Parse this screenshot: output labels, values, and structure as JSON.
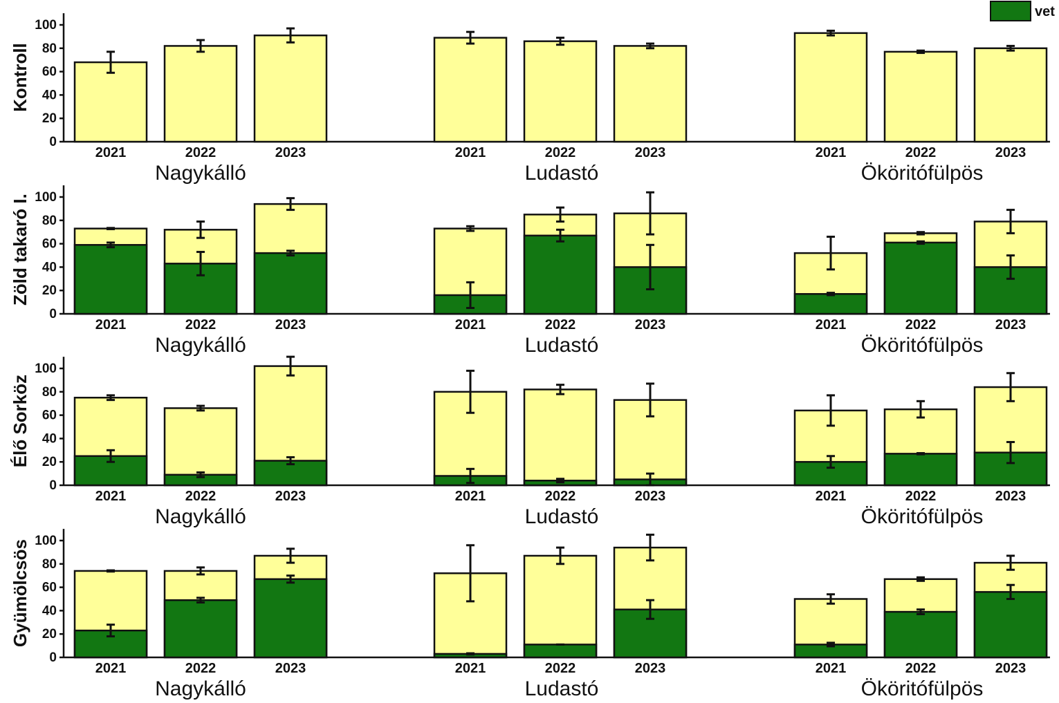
{
  "title": "",
  "legend": {
    "label": "vet",
    "color": "#127712"
  },
  "colors": {
    "green": "#127712",
    "yellow": "#ffff99",
    "outline": "#111111"
  },
  "chart_data": [
    {
      "type": "bar",
      "stacked": true,
      "panel": "Kontroll",
      "ylabel": "Kontroll",
      "yticks": [
        "0",
        "20",
        "40",
        "60",
        "80",
        "100"
      ],
      "ylim": [
        0,
        110
      ],
      "groups": [
        {
          "site": "Nagykálló",
          "categories": [
            "2021",
            "2022",
            "2023"
          ],
          "total": [
            68,
            82,
            91
          ],
          "total_err": [
            9,
            5,
            6
          ],
          "green": [
            0,
            0,
            0
          ],
          "green_err": [
            0,
            0,
            0
          ]
        },
        {
          "site": "Ludastó",
          "categories": [
            "2021",
            "2022",
            "2023"
          ],
          "total": [
            89,
            86,
            82
          ],
          "total_err": [
            5,
            3,
            2
          ],
          "green": [
            0,
            0,
            0
          ],
          "green_err": [
            0,
            0,
            0
          ]
        },
        {
          "site": "Ököritófülpös",
          "categories": [
            "2021",
            "2022",
            "2023"
          ],
          "total": [
            93,
            77,
            80
          ],
          "total_err": [
            2,
            1,
            2
          ],
          "green": [
            0,
            0,
            0
          ],
          "green_err": [
            0,
            0,
            0
          ]
        }
      ]
    },
    {
      "type": "bar",
      "stacked": true,
      "panel": "Zöld takaró I.",
      "ylabel": "Zöld takaró I.",
      "yticks": [
        "0",
        "20",
        "40",
        "60",
        "80",
        "100"
      ],
      "ylim": [
        0,
        110
      ],
      "groups": [
        {
          "site": "Nagykálló",
          "categories": [
            "2021",
            "2022",
            "2023"
          ],
          "total": [
            73,
            72,
            94
          ],
          "total_err": [
            0.5,
            7,
            5
          ],
          "green": [
            59,
            43,
            52
          ],
          "green_err": [
            2,
            10,
            2
          ]
        },
        {
          "site": "Ludastó",
          "categories": [
            "2021",
            "2022",
            "2023"
          ],
          "total": [
            73,
            85,
            86
          ],
          "total_err": [
            2,
            6,
            18
          ],
          "green": [
            16,
            67,
            40
          ],
          "green_err": [
            11,
            5,
            19
          ]
        },
        {
          "site": "Ököritófülpös",
          "categories": [
            "2021",
            "2022",
            "2023"
          ],
          "total": [
            52,
            69,
            79
          ],
          "total_err": [
            14,
            1,
            10
          ],
          "green": [
            17,
            61,
            40
          ],
          "green_err": [
            1,
            1,
            10
          ]
        }
      ]
    },
    {
      "type": "bar",
      "stacked": true,
      "panel": "Élő Sorköz",
      "ylabel": "Élő Sorköz",
      "yticks": [
        "0",
        "20",
        "40",
        "60",
        "80",
        "100"
      ],
      "ylim": [
        0,
        110
      ],
      "groups": [
        {
          "site": "Nagykálló",
          "categories": [
            "2021",
            "2022",
            "2023"
          ],
          "total": [
            75,
            66,
            102
          ],
          "total_err": [
            2,
            2,
            8
          ],
          "green": [
            25,
            9,
            21
          ],
          "green_err": [
            5,
            2,
            3
          ]
        },
        {
          "site": "Ludastó",
          "categories": [
            "2021",
            "2022",
            "2023"
          ],
          "total": [
            80,
            82,
            73
          ],
          "total_err": [
            18,
            4,
            14
          ],
          "green": [
            8,
            4,
            5
          ],
          "green_err": [
            6,
            1.5,
            5
          ]
        },
        {
          "site": "Ököritófülpös",
          "categories": [
            "2021",
            "2022",
            "2023"
          ],
          "total": [
            64,
            65,
            84
          ],
          "total_err": [
            13,
            7,
            12
          ],
          "green": [
            20,
            27,
            28
          ],
          "green_err": [
            5,
            0.5,
            9
          ]
        }
      ]
    },
    {
      "type": "bar",
      "stacked": true,
      "panel": "Gyümölcsös",
      "ylabel": "Gyümölcsös",
      "yticks": [
        "0",
        "20",
        "40",
        "60",
        "80",
        "100"
      ],
      "ylim": [
        0,
        110
      ],
      "groups": [
        {
          "site": "Nagykálló",
          "categories": [
            "2021",
            "2022",
            "2023"
          ],
          "total": [
            74,
            74,
            87
          ],
          "total_err": [
            0.5,
            3,
            6
          ],
          "green": [
            23,
            49,
            67
          ],
          "green_err": [
            5,
            2,
            3
          ]
        },
        {
          "site": "Ludastó",
          "categories": [
            "2021",
            "2022",
            "2023"
          ],
          "total": [
            72,
            87,
            94
          ],
          "total_err": [
            24,
            7,
            11
          ],
          "green": [
            3,
            11,
            41
          ],
          "green_err": [
            0.5,
            0,
            8
          ]
        },
        {
          "site": "Ököritófülpös",
          "categories": [
            "2021",
            "2022",
            "2023"
          ],
          "total": [
            50,
            67,
            81
          ],
          "total_err": [
            4,
            1.5,
            6
          ],
          "green": [
            11,
            39,
            56
          ],
          "green_err": [
            1.5,
            2,
            6
          ]
        }
      ]
    }
  ]
}
